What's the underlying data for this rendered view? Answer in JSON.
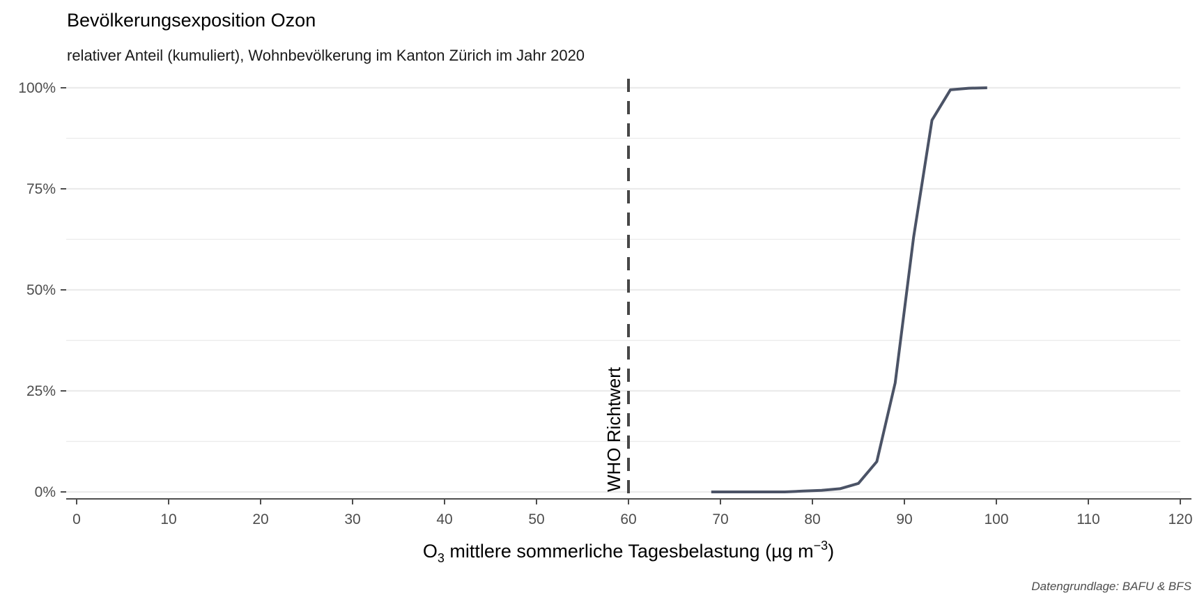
{
  "chart_data": {
    "type": "line",
    "title": "Bevölkerungsexposition Ozon",
    "subtitle": "relativer Anteil (kumuliert), Wohnbevölkerung im Kanton Zürich im Jahr 2020",
    "xlabel": {
      "main": "O",
      "subscript": "3",
      "rest": " mittlere sommerliche Tagesbelastung (µg m",
      "superscript": "−3",
      "close": ")"
    },
    "ylabel": "",
    "xlim": [
      0,
      120
    ],
    "ylim": [
      0,
      1
    ],
    "x_ticks": [
      0,
      10,
      20,
      30,
      40,
      50,
      60,
      70,
      80,
      90,
      100,
      110,
      120
    ],
    "x_tick_labels": [
      "0",
      "10",
      "20",
      "30",
      "40",
      "50",
      "60",
      "70",
      "80",
      "90",
      "100",
      "110",
      "120"
    ],
    "y_ticks": [
      0,
      0.25,
      0.5,
      0.75,
      1
    ],
    "y_tick_labels": [
      "0%",
      "25%",
      "50%",
      "75%",
      "100%"
    ],
    "y_minor_gridlines": [
      0.125,
      0.375,
      0.625,
      0.875
    ],
    "grid": true,
    "reference_line": {
      "x": 60,
      "label": "WHO Richtwert",
      "style": "dashed",
      "color": "#474747"
    },
    "series": [
      {
        "color": "#4b5366",
        "x": [
          69,
          71,
          73,
          75,
          77,
          79,
          81,
          83,
          85,
          87,
          89,
          91,
          93,
          95,
          97,
          99
        ],
        "y": [
          0.0,
          0.0,
          0.0,
          0.0,
          0.0,
          0.002,
          0.004,
          0.008,
          0.021,
          0.075,
          0.27,
          0.63,
          0.92,
          0.995,
          0.999,
          1.0
        ]
      }
    ],
    "caption": "Datengrundlage: BAFU & BFS"
  },
  "colors": {
    "grid": "#ebebeb",
    "axis": "#4d4d4d",
    "line": "#4b5366",
    "reference": "#474747"
  }
}
